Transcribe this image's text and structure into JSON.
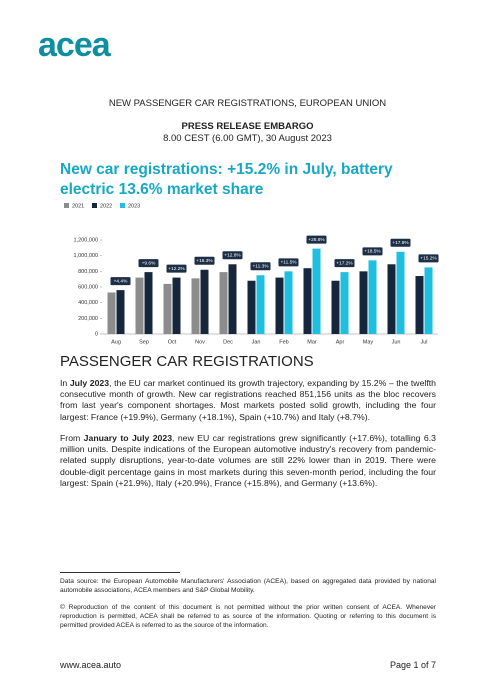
{
  "header": {
    "logo": "acea",
    "line": "NEW PASSENGER CAR REGISTRATIONS, EUROPEAN UNION",
    "embargo_title": "PRESS RELEASE EMBARGO",
    "embargo_time": "8.00 CEST (6.00 GMT), 30 August 2023"
  },
  "headline": "New car registrations: +15.2% in July, battery electric 13.6% market share",
  "chart_data": {
    "type": "bar",
    "categories": [
      "Aug",
      "Sep",
      "Oct",
      "Nov",
      "Dec",
      "Jan",
      "Feb",
      "Mar",
      "Apr",
      "May",
      "Jun",
      "Jul"
    ],
    "series": [
      {
        "name": "2021",
        "color": "#8c8c8c",
        "values": [
          530000,
          720000,
          640000,
          710000,
          790000,
          null,
          null,
          null,
          null,
          null,
          null,
          null
        ]
      },
      {
        "name": "2022",
        "color": "#16263d",
        "values": [
          560000,
          790000,
          720000,
          820000,
          890000,
          680000,
          720000,
          840000,
          680000,
          800000,
          890000,
          740000
        ]
      },
      {
        "name": "2023",
        "color": "#20bfe0",
        "values": [
          null,
          null,
          null,
          null,
          null,
          750000,
          800000,
          1090000,
          790000,
          940000,
          1050000,
          850000
        ]
      }
    ],
    "annotations": [
      "+4.4%",
      "+9.6%",
      "+12.2%",
      "+16.3%",
      "+12.8%",
      "+11.3%",
      "+11.5%",
      "+28.8%",
      "+17.2%",
      "+18.5%",
      "+17.8%",
      "+15.2%"
    ],
    "ylim": [
      0,
      1200000
    ],
    "yticks": [
      0,
      {
        "value": 200000,
        "label": "200,000"
      },
      {
        "value": 400000,
        "label": "400,000"
      },
      {
        "value": 600000,
        "label": "600,000"
      },
      {
        "value": 800000,
        "label": "800,000"
      },
      {
        "value": 1000000,
        "label": "1,000,000"
      },
      {
        "value": 1200000,
        "label": "1,200,000"
      }
    ],
    "grid": false,
    "legend": "top-left"
  },
  "section": "PASSENGER CAR REGISTRATIONS",
  "paragraphs": [
    [
      "In ",
      "July 2023",
      ", the EU car market continued its growth trajectory, expanding by 15.2% – the twelfth consecutive month of growth. New car registrations reached 851,156 units as the bloc recovers from last year's component shortages. Most markets posted solid growth, including the four largest: France (+19.9%), Germany (+18.1%), Spain (+10.7%) and Italy (+8.7%)."
    ],
    [
      "From ",
      "January to July 2023",
      ", new EU car registrations grew significantly (+17.6%), totalling 6.3 million units. Despite indications of the European automotive industry's recovery from pandemic-related supply disruptions, year-to-date volumes are still 22% lower than in 2019. There were double-digit percentage gains in most markets during this seven-month period, including the four largest: Spain (+21.9%), Italy (+20.9%), France (+15.8%), and Germany (+13.6%)."
    ]
  ],
  "footnote": "Data source: the European Automobile Manufacturers' Association (ACEA), based on aggregated data provided by national automobile associations, ACEA members and S&P Global Mobility.",
  "copyright": "© Reproduction of the content of this document is not permitted without the prior written consent of ACEA. Whenever reproduction is permitted, ACEA shall be referred to as source of the information. Quoting or referring to this document is permitted provided ACEA is referred to as the source of the information.",
  "footer": {
    "website": "www.acea.auto",
    "page": "Page 1 of 7"
  }
}
